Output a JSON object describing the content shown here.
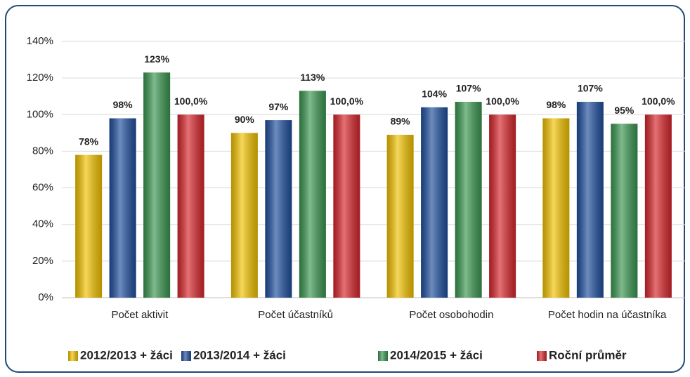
{
  "chart_data": {
    "type": "bar",
    "categories": [
      "Počet aktivit",
      "Počet účastníků",
      "Počet osobohodin",
      "Počet hodin na účastníka"
    ],
    "series": [
      {
        "name": "2012/2013 + žáci",
        "color": "#f2c200",
        "values": [
          78,
          90,
          89,
          98
        ],
        "value_labels": [
          "78%",
          "90%",
          "89%",
          "98%"
        ]
      },
      {
        "name": "2013/2014 + žáci",
        "color": "#1f4f9e",
        "values": [
          98,
          97,
          104,
          107
        ],
        "value_labels": [
          "98%",
          "97%",
          "104%",
          "107%"
        ]
      },
      {
        "name": "2014/2015 + žáci",
        "color": "#3a9650",
        "values": [
          123,
          113,
          107,
          95
        ],
        "value_labels": [
          "123%",
          "113%",
          "107%",
          "95%"
        ]
      },
      {
        "name": "Roční průměr",
        "color": "#d7262b",
        "values": [
          100,
          100,
          100,
          100
        ],
        "value_labels": [
          "100,0%",
          "100,0%",
          "100,0%",
          "100,0%"
        ]
      }
    ],
    "ylim": [
      0,
      140
    ],
    "yticks": [
      {
        "value": 0,
        "label": "0%"
      },
      {
        "value": 20,
        "label": "20%"
      },
      {
        "value": 40,
        "label": "40%"
      },
      {
        "value": 60,
        "label": "60%"
      },
      {
        "value": 80,
        "label": "80%"
      },
      {
        "value": 100,
        "label": "100%"
      },
      {
        "value": 120,
        "label": "120%"
      },
      {
        "value": 140,
        "label": "140%"
      }
    ],
    "grid": true,
    "legend": "bottom"
  }
}
